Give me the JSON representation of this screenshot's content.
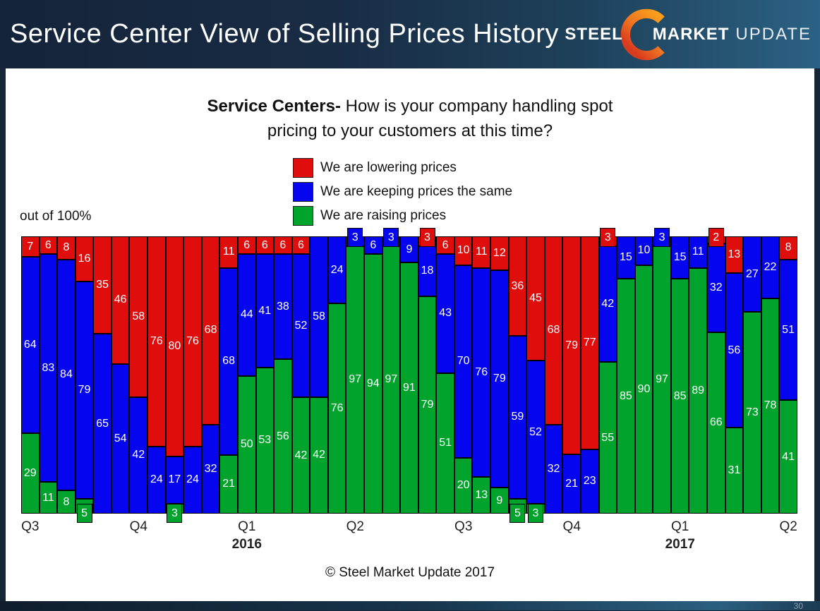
{
  "header": {
    "title": "Service Center View of Selling Prices History",
    "logo": {
      "steel": "STEEL",
      "market": "MARKET",
      "update": "UPDATE"
    }
  },
  "question": {
    "bold": "Service Centers-",
    "line1_rest": " How is your company handling spot",
    "line2": "pricing to your customers at this time?"
  },
  "legend": [
    {
      "label": "We are lowering prices",
      "color": "#e00d0d"
    },
    {
      "label": "We are keeping prices the same",
      "color": "#0505ef"
    },
    {
      "label": "We are raising prices",
      "color": "#00a32b"
    }
  ],
  "footer": "© Steel Market Update 2017",
  "page_number": "30",
  "chart_data": {
    "type": "bar",
    "stacked": true,
    "ylabel": "out of 100%",
    "ylim": [
      0,
      100
    ],
    "bar_count": 43,
    "callout_threshold": 5,
    "series": [
      {
        "name": "We are lowering prices",
        "color": "#e00d0d",
        "position": "top",
        "values": [
          7,
          6,
          8,
          16,
          35,
          46,
          58,
          76,
          80,
          76,
          68,
          11,
          6,
          6,
          6,
          6,
          0,
          0,
          0,
          0,
          0,
          0,
          3,
          6,
          10,
          11,
          12,
          36,
          45,
          68,
          79,
          77,
          3,
          0,
          0,
          0,
          0,
          0,
          2,
          13,
          0,
          0,
          8
        ]
      },
      {
        "name": "We are keeping prices the same",
        "color": "#0505ef",
        "position": "middle",
        "values": [
          64,
          83,
          84,
          79,
          65,
          54,
          42,
          24,
          17,
          24,
          32,
          68,
          44,
          41,
          38,
          52,
          58,
          24,
          3,
          6,
          3,
          9,
          18,
          43,
          70,
          76,
          79,
          59,
          52,
          32,
          21,
          23,
          42,
          15,
          10,
          3,
          15,
          11,
          32,
          56,
          27,
          22,
          51
        ]
      },
      {
        "name": "We are raising prices",
        "color": "#00a32b",
        "position": "bottom",
        "values": [
          29,
          11,
          8,
          5,
          0,
          0,
          0,
          0,
          3,
          0,
          0,
          21,
          50,
          53,
          56,
          42,
          42,
          76,
          97,
          94,
          97,
          91,
          79,
          51,
          20,
          13,
          9,
          5,
          3,
          0,
          0,
          0,
          55,
          85,
          90,
          97,
          85,
          89,
          66,
          31,
          73,
          78,
          41
        ]
      }
    ],
    "x_ticks": [
      {
        "label": "Q3",
        "bar_index": 0
      },
      {
        "label": "Q4",
        "bar_index": 6
      },
      {
        "label": "Q1",
        "bar_index": 12,
        "year": "2016"
      },
      {
        "label": "Q2",
        "bar_index": 18
      },
      {
        "label": "Q3",
        "bar_index": 24
      },
      {
        "label": "Q4",
        "bar_index": 30
      },
      {
        "label": "Q1",
        "bar_index": 36,
        "year": "2017"
      },
      {
        "label": "Q2",
        "bar_index": 42
      }
    ]
  }
}
